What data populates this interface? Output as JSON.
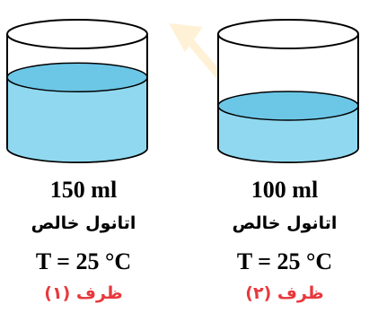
{
  "colors": {
    "liquid": "#8fd8f0",
    "liquid_dark": "#6cc6e6",
    "outline": "#000000",
    "caption": "#e8383d",
    "watermark": "#fff1d6"
  },
  "containers": [
    {
      "volume": "150 ml",
      "substance": "اتانول خالص",
      "temperature": "T = 25 °C",
      "caption": "ظرف (۱)",
      "fill_fraction": 0.62
    },
    {
      "volume": "100 ml",
      "substance": "اتانول خالص",
      "temperature": "T = 25 °C",
      "caption": "ظرف (۲)",
      "fill_fraction": 0.37
    }
  ]
}
